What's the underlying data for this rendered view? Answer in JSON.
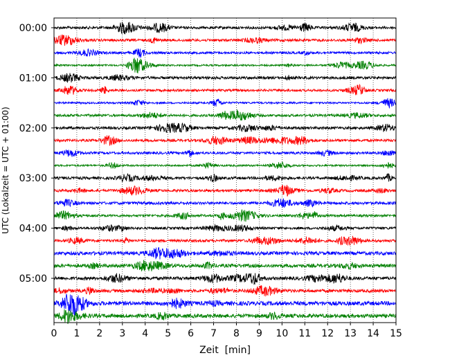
{
  "chart_data": {
    "type": "line",
    "title": "",
    "xlabel": "Zeit  [min]",
    "ylabel": "UTC (Lokalzeit = UTC + 01:00)",
    "xlim": [
      0,
      15
    ],
    "x_ticks": [
      "0",
      "1",
      "2",
      "3",
      "4",
      "5",
      "6",
      "7",
      "8",
      "9",
      "10",
      "11",
      "12",
      "13",
      "14",
      "15"
    ],
    "y_tick_labels": [
      "00:00",
      "01:00",
      "02:00",
      "03:00",
      "04:00",
      "05:00"
    ],
    "traces_per_hour": 4,
    "trace_count": 24,
    "trace_interval_minutes": 15,
    "trace_colors": [
      "#000000",
      "#ff0000",
      "#0000ff",
      "#008000"
    ],
    "vertical_grid": "dotted"
  }
}
